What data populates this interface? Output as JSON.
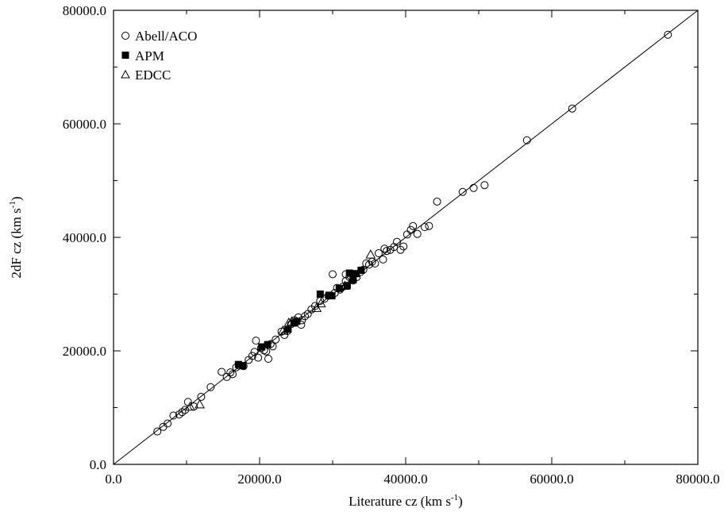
{
  "chart_data": {
    "type": "scatter",
    "xlabel": "Literature cz (km s",
    "xlabel_sup": "-1",
    "xlabel_end": ")",
    "ylabel": "2dF cz (km s",
    "ylabel_sup": "-1",
    "ylabel_end": ")",
    "xlim": [
      0,
      80000
    ],
    "ylim": [
      0,
      80000
    ],
    "xticks": [
      "0.0",
      "20000.0",
      "40000.0",
      "60000.0",
      "80000.0"
    ],
    "yticks": [
      "0.0",
      "20000.0",
      "40000.0",
      "60000.0",
      "80000.0"
    ],
    "grid": false,
    "legend_position": "top-left",
    "reference_line": {
      "x": [
        0,
        80000
      ],
      "y": [
        0,
        80000
      ]
    },
    "series": [
      {
        "name": "Abell/ACO",
        "marker": "open-circle",
        "points": [
          [
            6000,
            5800
          ],
          [
            6800,
            6600
          ],
          [
            7400,
            7200
          ],
          [
            8200,
            8600
          ],
          [
            9000,
            8800
          ],
          [
            9400,
            9200
          ],
          [
            9800,
            9600
          ],
          [
            10200,
            11000
          ],
          [
            11000,
            10200
          ],
          [
            12000,
            11900
          ],
          [
            13300,
            13600
          ],
          [
            14800,
            16300
          ],
          [
            15500,
            15400
          ],
          [
            16000,
            16200
          ],
          [
            16300,
            15900
          ],
          [
            16800,
            17100
          ],
          [
            17200,
            17400
          ],
          [
            17800,
            17300
          ],
          [
            18500,
            18400
          ],
          [
            19000,
            19100
          ],
          [
            19300,
            19800
          ],
          [
            19500,
            21800
          ],
          [
            19800,
            18800
          ],
          [
            20200,
            20500
          ],
          [
            20600,
            20100
          ],
          [
            20900,
            19900
          ],
          [
            21200,
            18600
          ],
          [
            21500,
            21200
          ],
          [
            21800,
            20800
          ],
          [
            22200,
            22000
          ],
          [
            23000,
            23400
          ],
          [
            23400,
            22800
          ],
          [
            23800,
            23500
          ],
          [
            24300,
            24700
          ],
          [
            24800,
            25400
          ],
          [
            25300,
            25900
          ],
          [
            25800,
            25400
          ],
          [
            25700,
            24600
          ],
          [
            26200,
            26100
          ],
          [
            26600,
            26500
          ],
          [
            27100,
            27300
          ],
          [
            27600,
            27900
          ],
          [
            28300,
            28800
          ],
          [
            28900,
            29200
          ],
          [
            29400,
            29700
          ],
          [
            30000,
            33500
          ],
          [
            30300,
            30200
          ],
          [
            30600,
            31100
          ],
          [
            31000,
            30800
          ],
          [
            31400,
            31300
          ],
          [
            31800,
            32300
          ],
          [
            31800,
            33500
          ],
          [
            32300,
            33000
          ],
          [
            32800,
            32400
          ],
          [
            33300,
            33000
          ],
          [
            33800,
            33900
          ],
          [
            34200,
            34300
          ],
          [
            34600,
            35400
          ],
          [
            35000,
            35200
          ],
          [
            35400,
            35700
          ],
          [
            35800,
            35400
          ],
          [
            36300,
            37200
          ],
          [
            36900,
            36100
          ],
          [
            37100,
            38000
          ],
          [
            37400,
            37600
          ],
          [
            37900,
            37800
          ],
          [
            38400,
            38300
          ],
          [
            38800,
            39200
          ],
          [
            39300,
            37800
          ],
          [
            39700,
            38400
          ],
          [
            40200,
            40500
          ],
          [
            40700,
            41300
          ],
          [
            41000,
            42000
          ],
          [
            41600,
            40600
          ],
          [
            42600,
            41800
          ],
          [
            43200,
            42000
          ],
          [
            44300,
            46300
          ],
          [
            47800,
            48000
          ],
          [
            49300,
            48700
          ],
          [
            50800,
            49200
          ],
          [
            56600,
            57100
          ],
          [
            62800,
            62700
          ],
          [
            75900,
            75700
          ]
        ]
      },
      {
        "name": "APM",
        "marker": "filled-square",
        "points": [
          [
            17100,
            17600
          ],
          [
            17700,
            17400
          ],
          [
            20300,
            20700
          ],
          [
            21100,
            21100
          ],
          [
            23900,
            23800
          ],
          [
            24700,
            24900
          ],
          [
            25100,
            25200
          ],
          [
            28300,
            30000
          ],
          [
            29500,
            29800
          ],
          [
            29900,
            29700
          ],
          [
            30900,
            31000
          ],
          [
            32000,
            31500
          ],
          [
            32300,
            33700
          ],
          [
            32800,
            32500
          ],
          [
            33200,
            33600
          ],
          [
            33900,
            34200
          ]
        ]
      },
      {
        "name": "EDCC",
        "marker": "open-triangle",
        "points": [
          [
            10500,
            10100
          ],
          [
            11800,
            10500
          ],
          [
            23200,
            23500
          ],
          [
            24000,
            24900
          ],
          [
            24400,
            25100
          ],
          [
            27800,
            27500
          ],
          [
            28400,
            28300
          ],
          [
            31700,
            31400
          ],
          [
            35200,
            36900
          ]
        ]
      }
    ]
  }
}
